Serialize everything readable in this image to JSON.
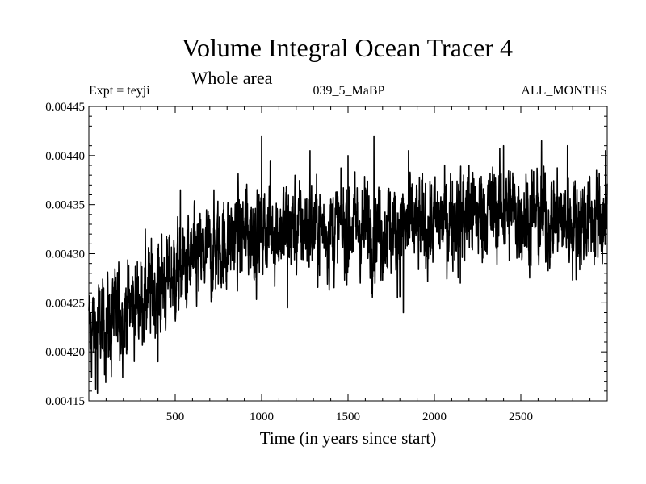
{
  "chart_data": {
    "type": "line",
    "title": "Volume Integral Ocean Tracer 4",
    "subtitle": "Whole area",
    "expt_label": "Expt = teyji",
    "run_label": "039_5_MaBP",
    "period_label": "ALL_MONTHS",
    "xlabel": "Time (in years since start)",
    "ylabel": "",
    "xlim": [
      0,
      3000
    ],
    "ylim": [
      0.00415,
      0.00445
    ],
    "x_ticks": [
      500,
      1000,
      1500,
      2000,
      2500
    ],
    "x_tick_labels": [
      "500",
      "1000",
      "1500",
      "2000",
      "2500"
    ],
    "y_ticks": [
      0.00415,
      0.0042,
      0.00425,
      0.0043,
      0.00435,
      0.0044,
      0.00445
    ],
    "y_tick_labels": [
      "0.00415",
      "0.00420",
      "0.00425",
      "0.00430",
      "0.00435",
      "0.00440",
      "0.00445"
    ],
    "grid": false,
    "series": [
      {
        "name": "Ocean Tracer 4",
        "color": "#000000",
        "trend": [
          [
            0,
            0.004222
          ],
          [
            100,
            0.004228
          ],
          [
            200,
            0.00424
          ],
          [
            300,
            0.004255
          ],
          [
            400,
            0.004265
          ],
          [
            500,
            0.00428
          ],
          [
            600,
            0.00429
          ],
          [
            700,
            0.0043
          ],
          [
            800,
            0.004312
          ],
          [
            900,
            0.00432
          ],
          [
            1000,
            0.004325
          ],
          [
            1200,
            0.004325
          ],
          [
            1500,
            0.004327
          ],
          [
            1800,
            0.004325
          ],
          [
            2000,
            0.00433
          ],
          [
            2200,
            0.00434
          ],
          [
            2400,
            0.004345
          ],
          [
            2600,
            0.004337
          ],
          [
            2800,
            0.004335
          ],
          [
            3000,
            0.004335
          ]
        ],
        "noise_amplitude": 3.2e-05,
        "spikes": [
          [
            50,
            0.004158
          ],
          [
            130,
            0.004175
          ],
          [
            215,
            0.004265
          ],
          [
            400,
            0.00419
          ],
          [
            530,
            0.004365
          ],
          [
            1000,
            0.00442
          ],
          [
            1050,
            0.004395
          ],
          [
            1150,
            0.004245
          ],
          [
            1280,
            0.004405
          ],
          [
            1500,
            0.0044
          ],
          [
            1650,
            0.00442
          ],
          [
            1820,
            0.00424
          ],
          [
            1850,
            0.004405
          ],
          [
            2150,
            0.00427
          ],
          [
            2200,
            0.00439
          ],
          [
            2400,
            0.00441
          ],
          [
            2620,
            0.004415
          ],
          [
            2770,
            0.00441
          ],
          [
            2990,
            0.004405
          ]
        ]
      }
    ]
  }
}
